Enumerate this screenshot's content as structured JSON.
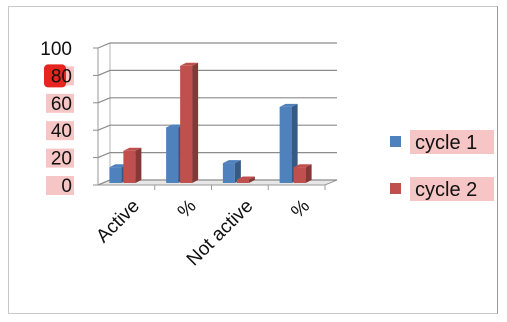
{
  "chart_data": {
    "type": "bar",
    "title": "",
    "xlabel": "",
    "ylabel": "",
    "categories": [
      "Active",
      "%",
      "Not active",
      "%"
    ],
    "series": [
      {
        "name": "cycle 1",
        "values": [
          13,
          42,
          16,
          57
        ],
        "color": "#4f81bd"
      },
      {
        "name": "cycle 2",
        "values": [
          25,
          87,
          4,
          13
        ],
        "color": "#c0504d"
      }
    ],
    "ylim": [
      0,
      100
    ],
    "yticks": [
      0,
      20,
      40,
      60,
      80,
      100
    ],
    "grid": true,
    "style": "3d-clustered-column",
    "legend_position": "right",
    "highlight_color": "#f6c5c5"
  }
}
